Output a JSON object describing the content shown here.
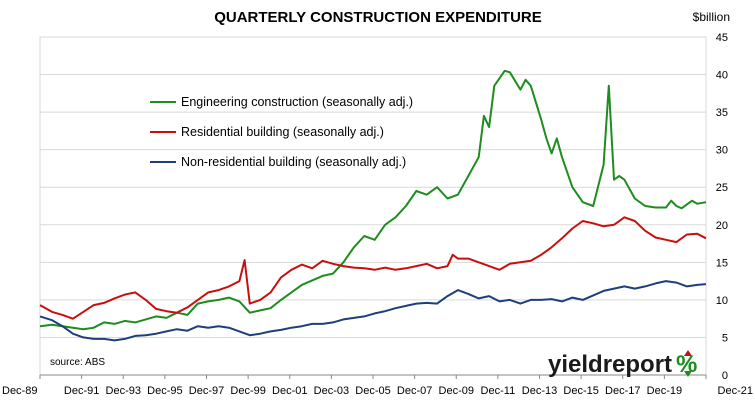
{
  "chart_data": {
    "type": "line",
    "title": "QUARTERLY CONSTRUCTION EXPENDITURE",
    "unit_label": "$billion",
    "ylim": [
      0,
      45
    ],
    "y_ticks": [
      "0",
      "5",
      "10",
      "15",
      "20",
      "25",
      "30",
      "35",
      "40",
      "45"
    ],
    "xlim": [
      1989.92,
      2021.92
    ],
    "x_ticks": [
      {
        "label": "Dec-89",
        "x": 1989.92
      },
      {
        "label": "Dec-91",
        "x": 1991.92
      },
      {
        "label": "Dec-93",
        "x": 1993.92
      },
      {
        "label": "Dec-95",
        "x": 1995.92
      },
      {
        "label": "Dec-97",
        "x": 1997.92
      },
      {
        "label": "Dec-99",
        "x": 1999.92
      },
      {
        "label": "Dec-01",
        "x": 2001.92
      },
      {
        "label": "Dec-03",
        "x": 2003.92
      },
      {
        "label": "Dec-05",
        "x": 2005.92
      },
      {
        "label": "Dec-07",
        "x": 2007.92
      },
      {
        "label": "Dec-09",
        "x": 2009.92
      },
      {
        "label": "Dec-11",
        "x": 2011.92
      },
      {
        "label": "Dec-13",
        "x": 2013.92
      },
      {
        "label": "Dec-15",
        "x": 2015.92
      },
      {
        "label": "Dec-17",
        "x": 2017.92
      },
      {
        "label": "Dec-19",
        "x": 2019.92
      },
      {
        "label": "Dec-21",
        "x": 2021.92
      }
    ],
    "grid": "horizontal",
    "legend_position": "top-left",
    "series": [
      {
        "name": "Engineering construction (seasonally adj.)",
        "color": "#1e8c1e",
        "points": [
          [
            1989.92,
            6.5
          ],
          [
            1990.5,
            6.7
          ],
          [
            1991,
            6.5
          ],
          [
            1991.5,
            6.3
          ],
          [
            1992,
            6.1
          ],
          [
            1992.5,
            6.3
          ],
          [
            1993,
            7
          ],
          [
            1993.5,
            6.8
          ],
          [
            1994,
            7.2
          ],
          [
            1994.5,
            7
          ],
          [
            1995,
            7.4
          ],
          [
            1995.5,
            7.8
          ],
          [
            1996,
            7.6
          ],
          [
            1996.5,
            8.3
          ],
          [
            1997,
            8
          ],
          [
            1997.5,
            9.5
          ],
          [
            1998,
            9.8
          ],
          [
            1998.5,
            10
          ],
          [
            1999,
            10.3
          ],
          [
            1999.5,
            9.8
          ],
          [
            2000,
            8.3
          ],
          [
            2000.5,
            8.6
          ],
          [
            2001,
            8.9
          ],
          [
            2001.5,
            10
          ],
          [
            2002,
            11
          ],
          [
            2002.5,
            12
          ],
          [
            2003,
            12.6
          ],
          [
            2003.5,
            13.2
          ],
          [
            2004,
            13.5
          ],
          [
            2004.5,
            15
          ],
          [
            2005,
            17
          ],
          [
            2005.5,
            18.5
          ],
          [
            2006,
            18
          ],
          [
            2006.5,
            20
          ],
          [
            2007,
            21
          ],
          [
            2007.5,
            22.5
          ],
          [
            2008,
            24.5
          ],
          [
            2008.5,
            24
          ],
          [
            2009,
            25
          ],
          [
            2009.5,
            23.5
          ],
          [
            2010,
            24
          ],
          [
            2010.5,
            26.5
          ],
          [
            2011,
            29
          ],
          [
            2011.25,
            34.5
          ],
          [
            2011.5,
            33
          ],
          [
            2011.75,
            38.5
          ],
          [
            2012,
            39.5
          ],
          [
            2012.25,
            40.5
          ],
          [
            2012.5,
            40.3
          ],
          [
            2013,
            38
          ],
          [
            2013.25,
            39.3
          ],
          [
            2013.5,
            38.5
          ],
          [
            2014,
            34
          ],
          [
            2014.25,
            31.5
          ],
          [
            2014.5,
            29.5
          ],
          [
            2014.75,
            31.5
          ],
          [
            2015,
            29
          ],
          [
            2015.5,
            25
          ],
          [
            2016,
            23
          ],
          [
            2016.5,
            22.5
          ],
          [
            2017,
            28
          ],
          [
            2017.25,
            38.5
          ],
          [
            2017.5,
            26
          ],
          [
            2017.75,
            26.5
          ],
          [
            2018,
            26
          ],
          [
            2018.5,
            23.5
          ],
          [
            2019,
            22.5
          ],
          [
            2019.5,
            22.3
          ],
          [
            2020,
            22.3
          ],
          [
            2020.25,
            23.2
          ],
          [
            2020.5,
            22.5
          ],
          [
            2020.75,
            22.2
          ],
          [
            2021.25,
            23.2
          ],
          [
            2021.5,
            22.8
          ],
          [
            2021.92,
            23
          ]
        ]
      },
      {
        "name": "Residential building (seasonally adj.)",
        "color": "#c80f0f",
        "points": [
          [
            1989.92,
            9.3
          ],
          [
            1990.5,
            8.4
          ],
          [
            1991,
            8
          ],
          [
            1991.5,
            7.5
          ],
          [
            1992,
            8.4
          ],
          [
            1992.5,
            9.3
          ],
          [
            1993,
            9.6
          ],
          [
            1993.5,
            10.2
          ],
          [
            1994,
            10.7
          ],
          [
            1994.5,
            11
          ],
          [
            1995,
            10
          ],
          [
            1995.5,
            8.8
          ],
          [
            1996,
            8.5
          ],
          [
            1996.5,
            8.3
          ],
          [
            1997,
            9
          ],
          [
            1997.5,
            10
          ],
          [
            1998,
            11
          ],
          [
            1998.5,
            11.3
          ],
          [
            1999,
            11.8
          ],
          [
            1999.5,
            12.5
          ],
          [
            1999.75,
            15.3
          ],
          [
            2000,
            9.5
          ],
          [
            2000.5,
            10
          ],
          [
            2001,
            11
          ],
          [
            2001.5,
            13
          ],
          [
            2002,
            14
          ],
          [
            2002.5,
            14.7
          ],
          [
            2003,
            14.2
          ],
          [
            2003.5,
            15.2
          ],
          [
            2004,
            14.8
          ],
          [
            2004.5,
            14.5
          ],
          [
            2005,
            14.3
          ],
          [
            2005.5,
            14.2
          ],
          [
            2006,
            14
          ],
          [
            2006.5,
            14.3
          ],
          [
            2007,
            14
          ],
          [
            2007.5,
            14.2
          ],
          [
            2008,
            14.5
          ],
          [
            2008.5,
            14.8
          ],
          [
            2009,
            14.2
          ],
          [
            2009.5,
            14.5
          ],
          [
            2009.75,
            16
          ],
          [
            2010,
            15.5
          ],
          [
            2010.5,
            15.5
          ],
          [
            2011,
            15
          ],
          [
            2011.5,
            14.5
          ],
          [
            2012,
            14
          ],
          [
            2012.5,
            14.8
          ],
          [
            2013,
            15
          ],
          [
            2013.5,
            15.2
          ],
          [
            2014,
            16
          ],
          [
            2014.5,
            17
          ],
          [
            2015,
            18.2
          ],
          [
            2015.5,
            19.5
          ],
          [
            2016,
            20.5
          ],
          [
            2016.5,
            20.2
          ],
          [
            2017,
            19.8
          ],
          [
            2017.5,
            20
          ],
          [
            2018,
            21
          ],
          [
            2018.5,
            20.5
          ],
          [
            2019,
            19.2
          ],
          [
            2019.5,
            18.3
          ],
          [
            2020,
            18
          ],
          [
            2020.5,
            17.7
          ],
          [
            2021,
            18.7
          ],
          [
            2021.5,
            18.8
          ],
          [
            2021.92,
            18.2
          ]
        ]
      },
      {
        "name": "Non-residential building (seasonally adj.)",
        "color": "#1f3f7a",
        "points": [
          [
            1989.92,
            7.8
          ],
          [
            1990.5,
            7.3
          ],
          [
            1991,
            6.5
          ],
          [
            1991.5,
            5.5
          ],
          [
            1992,
            5
          ],
          [
            1992.5,
            4.8
          ],
          [
            1993,
            4.8
          ],
          [
            1993.5,
            4.6
          ],
          [
            1994,
            4.8
          ],
          [
            1994.5,
            5.2
          ],
          [
            1995,
            5.3
          ],
          [
            1995.5,
            5.5
          ],
          [
            1996,
            5.8
          ],
          [
            1996.5,
            6.1
          ],
          [
            1997,
            5.9
          ],
          [
            1997.5,
            6.5
          ],
          [
            1998,
            6.3
          ],
          [
            1998.5,
            6.5
          ],
          [
            1999,
            6.3
          ],
          [
            1999.5,
            5.8
          ],
          [
            2000,
            5.3
          ],
          [
            2000.5,
            5.5
          ],
          [
            2001,
            5.8
          ],
          [
            2001.5,
            6
          ],
          [
            2002,
            6.3
          ],
          [
            2002.5,
            6.5
          ],
          [
            2003,
            6.8
          ],
          [
            2003.5,
            6.8
          ],
          [
            2004,
            7
          ],
          [
            2004.5,
            7.4
          ],
          [
            2005,
            7.6
          ],
          [
            2005.5,
            7.8
          ],
          [
            2006,
            8.2
          ],
          [
            2006.5,
            8.5
          ],
          [
            2007,
            8.9
          ],
          [
            2007.5,
            9.2
          ],
          [
            2008,
            9.5
          ],
          [
            2008.5,
            9.6
          ],
          [
            2009,
            9.5
          ],
          [
            2009.5,
            10.5
          ],
          [
            2010,
            11.3
          ],
          [
            2010.5,
            10.8
          ],
          [
            2011,
            10.2
          ],
          [
            2011.5,
            10.5
          ],
          [
            2012,
            9.8
          ],
          [
            2012.5,
            10
          ],
          [
            2013,
            9.5
          ],
          [
            2013.5,
            10
          ],
          [
            2014,
            10
          ],
          [
            2014.5,
            10.1
          ],
          [
            2015,
            9.8
          ],
          [
            2015.5,
            10.3
          ],
          [
            2016,
            10
          ],
          [
            2016.5,
            10.6
          ],
          [
            2017,
            11.2
          ],
          [
            2017.5,
            11.5
          ],
          [
            2018,
            11.8
          ],
          [
            2018.5,
            11.5
          ],
          [
            2019,
            11.8
          ],
          [
            2019.5,
            12.2
          ],
          [
            2020,
            12.5
          ],
          [
            2020.5,
            12.3
          ],
          [
            2021,
            11.8
          ],
          [
            2021.5,
            12
          ],
          [
            2021.92,
            12.1
          ]
        ]
      }
    ],
    "source": "source: ABS"
  },
  "logo": {
    "text_main": "yieldreport",
    "text_pct": "%"
  }
}
